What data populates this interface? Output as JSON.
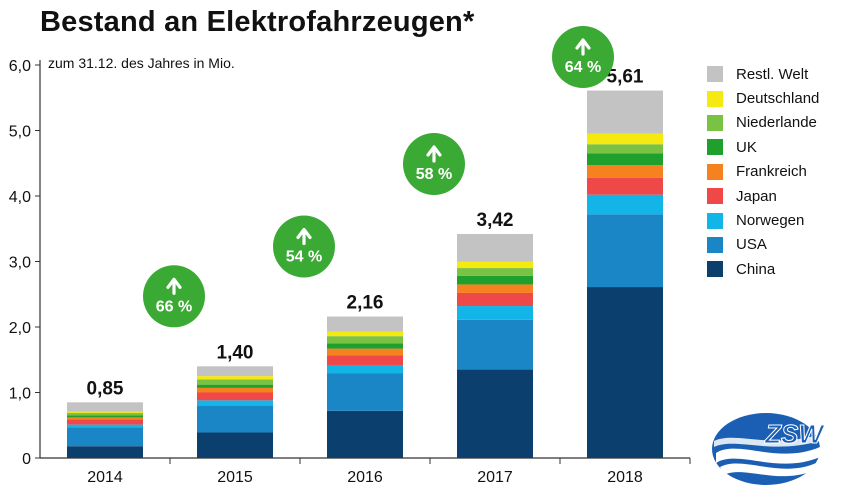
{
  "title": "Bestand an Elektrofahrzeugen*",
  "chart_data": {
    "type": "bar",
    "stacked": true,
    "title": "Bestand an Elektrofahrzeugen*",
    "subtitle": "zum 31.12. des Jahres in Mio.",
    "xlabel": "",
    "ylabel": "",
    "ylim": [
      0,
      6
    ],
    "yticks": [
      0,
      1,
      2,
      3,
      4,
      5,
      6
    ],
    "ytick_labels": [
      "0",
      "1,0",
      "2,0",
      "3,0",
      "4,0",
      "5,0",
      "6,0"
    ],
    "categories": [
      "2014",
      "2015",
      "2016",
      "2017",
      "2018"
    ],
    "totals": [
      0.85,
      1.4,
      2.16,
      3.42,
      5.61
    ],
    "total_labels": [
      "0,85",
      "1,40",
      "2,16",
      "3,42",
      "5,61"
    ],
    "growth_labels": [
      "66 %",
      "54 %",
      "58 %",
      "64 %"
    ],
    "legend_position": "right",
    "series": [
      {
        "name": "China",
        "color": "#0b3f6e",
        "values": [
          0.18,
          0.39,
          0.72,
          1.35,
          2.61
        ]
      },
      {
        "name": "USA",
        "color": "#1a86c6",
        "values": [
          0.29,
          0.41,
          0.57,
          0.76,
          1.11
        ]
      },
      {
        "name": "Norwegen",
        "color": "#13b5e8",
        "values": [
          0.04,
          0.08,
          0.13,
          0.21,
          0.3
        ]
      },
      {
        "name": "Japan",
        "color": "#ef4848",
        "values": [
          0.08,
          0.12,
          0.15,
          0.2,
          0.26
        ]
      },
      {
        "name": "Frankreich",
        "color": "#f5821f",
        "values": [
          0.03,
          0.07,
          0.1,
          0.13,
          0.19
        ]
      },
      {
        "name": "UK",
        "color": "#1f9f2c",
        "values": [
          0.03,
          0.05,
          0.08,
          0.13,
          0.18
        ]
      },
      {
        "name": "Niederlande",
        "color": "#7ac243",
        "values": [
          0.04,
          0.08,
          0.11,
          0.12,
          0.14
        ]
      },
      {
        "name": "Deutschland",
        "color": "#f5e90f",
        "values": [
          0.02,
          0.05,
          0.07,
          0.1,
          0.16
        ]
      },
      {
        "name": "Restl. Welt",
        "color": "#c3c3c3",
        "values": [
          0.14,
          0.15,
          0.23,
          0.42,
          0.66
        ]
      }
    ]
  },
  "legend": {
    "items": [
      {
        "name": "Restl. Welt",
        "color": "#c3c3c3"
      },
      {
        "name": "Deutschland",
        "color": "#f5e90f"
      },
      {
        "name": "Niederlande",
        "color": "#7ac243"
      },
      {
        "name": "UK",
        "color": "#1f9f2c"
      },
      {
        "name": "Frankreich",
        "color": "#f5821f"
      },
      {
        "name": "Japan",
        "color": "#ef4848"
      },
      {
        "name": "Norwegen",
        "color": "#13b5e8"
      },
      {
        "name": "USA",
        "color": "#1a86c6"
      },
      {
        "name": "China",
        "color": "#0b3f6e"
      }
    ]
  },
  "logo": {
    "text": "ZSW",
    "color": "#1a5fb4"
  },
  "colors": {
    "growth_badge": "#3aaa35",
    "axis": "#333333"
  }
}
